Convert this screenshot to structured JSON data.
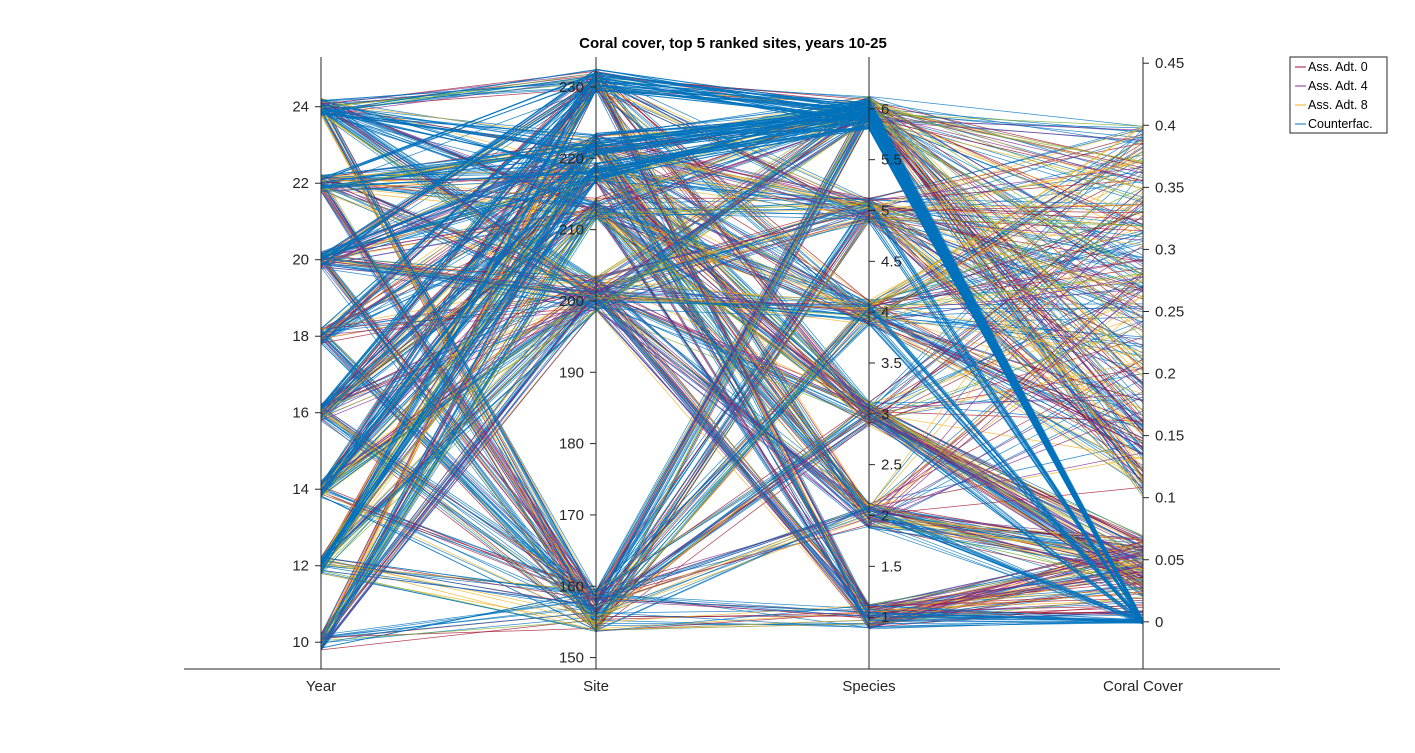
{
  "chart_data": {
    "type": "parallel-coordinates",
    "title": "Coral cover, top 5 ranked sites, years 10-25",
    "axes": [
      {
        "name": "Year",
        "ticks": [
          "10",
          "12",
          "14",
          "16",
          "18",
          "20",
          "22",
          "24"
        ],
        "range": [
          9.3,
          25.3
        ],
        "tick_side": "left"
      },
      {
        "name": "Site",
        "ticks": [
          "150",
          "160",
          "170",
          "180",
          "190",
          "200",
          "210",
          "220",
          "230"
        ],
        "range": [
          148.4,
          234.2
        ],
        "tick_side": "left"
      },
      {
        "name": "Species",
        "ticks": [
          "1",
          "1.5",
          "2",
          "2.5",
          "3",
          "3.5",
          "4",
          "4.5",
          "5",
          "5.5",
          "6"
        ],
        "range": [
          0.49,
          6.51
        ],
        "tick_side": "right"
      },
      {
        "name": "Coral Cover",
        "ticks": [
          "0",
          "0.05",
          "0.1",
          "0.15",
          "0.2",
          "0.25",
          "0.3",
          "0.35",
          "0.4",
          "0.45"
        ],
        "range": [
          -0.038,
          0.455
        ],
        "tick_side": "right"
      }
    ],
    "legend": {
      "placement": "top-right",
      "entries": [
        {
          "label": "Ass. Adt. 0",
          "color": "#A2142F"
        },
        {
          "label": "Ass. Adt. 4",
          "color": "#7E2F8E"
        },
        {
          "label": "Ass. Adt. 8",
          "color": "#EDB120"
        },
        {
          "label": "Counterfac.",
          "color": "#0072BD"
        }
      ]
    },
    "categories_summary": {
      "years": [
        10,
        12,
        14,
        16,
        18,
        20,
        22,
        24
      ],
      "sites": [
        155,
        158,
        200,
        202,
        213,
        218,
        222,
        231
      ],
      "species": [
        1,
        2,
        3,
        4,
        5,
        6
      ]
    }
  }
}
